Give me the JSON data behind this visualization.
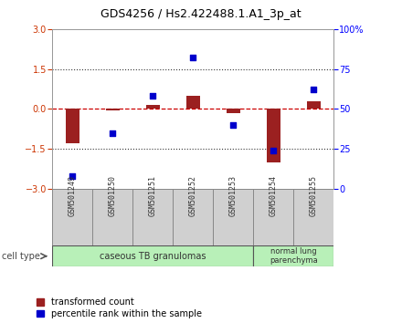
{
  "title": "GDS4256 / Hs2.422488.1.A1_3p_at",
  "samples": [
    "GSM501249",
    "GSM501250",
    "GSM501251",
    "GSM501252",
    "GSM501253",
    "GSM501254",
    "GSM501255"
  ],
  "transformed_counts": [
    -1.3,
    -0.05,
    0.15,
    0.5,
    -0.15,
    -2.0,
    0.3
  ],
  "percentile_ranks": [
    8,
    35,
    58,
    82,
    40,
    24,
    62
  ],
  "ylim_left": [
    -3,
    3
  ],
  "ylim_right": [
    0,
    100
  ],
  "yticks_left": [
    -3,
    -1.5,
    0,
    1.5,
    3
  ],
  "yticks_right": [
    0,
    25,
    50,
    75,
    100
  ],
  "ytick_labels_right": [
    "0",
    "25",
    "50",
    "75",
    "100%"
  ],
  "bar_color": "#9B2020",
  "scatter_color": "#0000CC",
  "zero_line_color": "#cc0000",
  "dotted_line_color": "#333333",
  "plot_bg_color": "#ffffff",
  "bar_width": 0.35,
  "legend_red_label": "transformed count",
  "legend_blue_label": "percentile rank within the sample",
  "cell_type_label": "cell type",
  "group1_label": "caseous TB granulomas",
  "group1_samples": 5,
  "group2_label": "normal lung\nparenchyma",
  "group2_samples": 2,
  "group_color": "#b8f0b8",
  "sample_box_color": "#d0d0d0",
  "sample_box_edge": "#888888",
  "title_fontsize": 9,
  "tick_fontsize": 7,
  "label_fontsize": 6,
  "legend_fontsize": 7
}
